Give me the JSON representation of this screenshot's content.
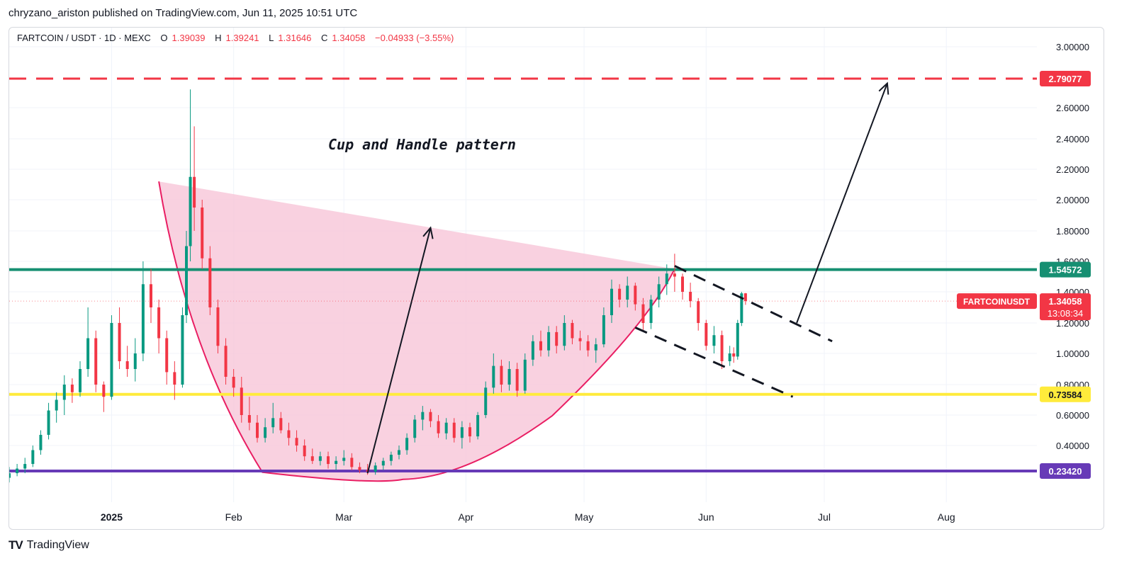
{
  "header": {
    "published_by": "chryzano_ariston published on TradingView.com, Jun 11, 2025 10:51 UTC"
  },
  "legend": {
    "symbol": "FARTCOIN / USDT · 1D · MEXC",
    "o_label": "O",
    "o_value": "1.39039",
    "h_label": "H",
    "h_value": "1.39241",
    "l_label": "L",
    "l_value": "1.31646",
    "c_label": "C",
    "c_value": "1.34058",
    "change": "−0.04933 (−3.55%)"
  },
  "footer": {
    "brand": "TradingView"
  },
  "colors": {
    "up": "#089981",
    "down": "#f23645",
    "target_line": "#f23645",
    "resistance_line": "#168f72",
    "support_line": "#ffeb3b",
    "base_line": "#673ab7",
    "cup_fill": "#f8c5d8",
    "cup_curve": "#e91e63"
  },
  "chart_data": {
    "type": "candlestick",
    "title": "",
    "annotation": "Cup and Handle pattern",
    "x_tick_labels": [
      "2025",
      "Feb",
      "Mar",
      "Apr",
      "May",
      "Jun",
      "Jul",
      "Aug"
    ],
    "x_tick_dates": [
      "2025-01-01",
      "2025-02-01",
      "2025-03-01",
      "2025-04-01",
      "2025-05-01",
      "2025-06-01",
      "2025-07-01",
      "2025-08-01"
    ],
    "x_range": [
      "2024-12-06",
      "2025-08-24"
    ],
    "y_tick_labels": [
      "0.40000",
      "0.60000",
      "0.80000",
      "1.00000",
      "1.20000",
      "1.40000",
      "1.60000",
      "1.80000",
      "2.00000",
      "2.20000",
      "2.40000",
      "2.60000",
      "3.00000"
    ],
    "y_ticks": [
      0.4,
      0.6,
      0.8,
      1.0,
      1.2,
      1.4,
      1.6,
      1.8,
      2.0,
      2.2,
      2.4,
      2.6,
      3.0
    ],
    "y_range": [
      0.15,
      3.1
    ],
    "levels": [
      {
        "label": "2.79077",
        "value": 2.79077,
        "style": "dashed",
        "color": "#f23645"
      },
      {
        "label": "1.54572",
        "value": 1.54572,
        "style": "solid",
        "color": "#168f72"
      },
      {
        "label": "0.73584",
        "value": 0.73584,
        "style": "solid",
        "color": "#ffeb3b"
      },
      {
        "label": "0.23420",
        "value": 0.2342,
        "style": "solid",
        "color": "#673ab7"
      }
    ],
    "price_tag": {
      "name": "FARTCOINUSDT",
      "value": "1.34058",
      "countdown": "13:08:34"
    },
    "cup": {
      "apex_start": {
        "date": "2025-01-13",
        "price": 2.12
      },
      "apex_end": {
        "date": "2025-05-24",
        "price": 1.55
      },
      "bottom": {
        "date": "2025-03-16",
        "price": 0.18
      }
    },
    "handle_channel": {
      "upper": [
        {
          "date": "2025-05-24",
          "price": 1.57
        },
        {
          "date": "2025-07-03",
          "price": 1.08
        }
      ],
      "lower": [
        {
          "date": "2025-05-14",
          "price": 1.17
        },
        {
          "date": "2025-06-23",
          "price": 0.72
        }
      ]
    },
    "arrows": [
      {
        "from": {
          "date": "2025-03-07",
          "price": 0.22
        },
        "to": {
          "date": "2025-03-23",
          "price": 1.82
        }
      },
      {
        "from": {
          "date": "2025-06-24",
          "price": 1.2
        },
        "to": {
          "date": "2025-07-17",
          "price": 2.76
        }
      }
    ],
    "candles": [
      {
        "d": "2024-12-06",
        "o": 0.19,
        "h": 0.26,
        "l": 0.16,
        "c": 0.22
      },
      {
        "d": "2024-12-08",
        "o": 0.22,
        "h": 0.28,
        "l": 0.2,
        "c": 0.25
      },
      {
        "d": "2024-12-10",
        "o": 0.25,
        "h": 0.32,
        "l": 0.22,
        "c": 0.28
      },
      {
        "d": "2024-12-12",
        "o": 0.28,
        "h": 0.4,
        "l": 0.26,
        "c": 0.37
      },
      {
        "d": "2024-12-14",
        "o": 0.37,
        "h": 0.5,
        "l": 0.34,
        "c": 0.47
      },
      {
        "d": "2024-12-16",
        "o": 0.47,
        "h": 0.68,
        "l": 0.44,
        "c": 0.63
      },
      {
        "d": "2024-12-18",
        "o": 0.63,
        "h": 0.75,
        "l": 0.55,
        "c": 0.7
      },
      {
        "d": "2024-12-20",
        "o": 0.7,
        "h": 0.86,
        "l": 0.6,
        "c": 0.8
      },
      {
        "d": "2024-12-22",
        "o": 0.8,
        "h": 0.84,
        "l": 0.68,
        "c": 0.75
      },
      {
        "d": "2024-12-24",
        "o": 0.75,
        "h": 0.95,
        "l": 0.72,
        "c": 0.9
      },
      {
        "d": "2024-12-26",
        "o": 0.9,
        "h": 1.3,
        "l": 0.85,
        "c": 1.1
      },
      {
        "d": "2024-12-28",
        "o": 1.1,
        "h": 1.15,
        "l": 0.75,
        "c": 0.8
      },
      {
        "d": "2024-12-30",
        "o": 0.8,
        "h": 0.82,
        "l": 0.62,
        "c": 0.72
      },
      {
        "d": "2025-01-01",
        "o": 0.72,
        "h": 1.25,
        "l": 0.7,
        "c": 1.2
      },
      {
        "d": "2025-01-03",
        "o": 1.2,
        "h": 1.3,
        "l": 0.9,
        "c": 0.95
      },
      {
        "d": "2025-01-05",
        "o": 0.95,
        "h": 1.05,
        "l": 0.85,
        "c": 0.9
      },
      {
        "d": "2025-01-07",
        "o": 0.9,
        "h": 1.1,
        "l": 0.82,
        "c": 1.0
      },
      {
        "d": "2025-01-09",
        "o": 1.0,
        "h": 1.6,
        "l": 0.95,
        "c": 1.45
      },
      {
        "d": "2025-01-11",
        "o": 1.45,
        "h": 1.55,
        "l": 1.2,
        "c": 1.3
      },
      {
        "d": "2025-01-13",
        "o": 1.3,
        "h": 1.35,
        "l": 1.0,
        "c": 1.1
      },
      {
        "d": "2025-01-15",
        "o": 1.1,
        "h": 1.15,
        "l": 0.8,
        "c": 0.88
      },
      {
        "d": "2025-01-17",
        "o": 0.88,
        "h": 0.95,
        "l": 0.7,
        "c": 0.8
      },
      {
        "d": "2025-01-19",
        "o": 0.8,
        "h": 1.3,
        "l": 0.78,
        "c": 1.25
      },
      {
        "d": "2025-01-20",
        "o": 1.25,
        "h": 1.8,
        "l": 1.2,
        "c": 1.7
      },
      {
        "d": "2025-01-21",
        "o": 1.7,
        "h": 2.72,
        "l": 1.6,
        "c": 2.15
      },
      {
        "d": "2025-01-22",
        "o": 2.15,
        "h": 2.48,
        "l": 1.8,
        "c": 1.95
      },
      {
        "d": "2025-01-24",
        "o": 1.95,
        "h": 2.0,
        "l": 1.55,
        "c": 1.62
      },
      {
        "d": "2025-01-26",
        "o": 1.62,
        "h": 1.7,
        "l": 1.25,
        "c": 1.3
      },
      {
        "d": "2025-01-28",
        "o": 1.3,
        "h": 1.35,
        "l": 1.0,
        "c": 1.05
      },
      {
        "d": "2025-01-30",
        "o": 1.05,
        "h": 1.1,
        "l": 0.8,
        "c": 0.85
      },
      {
        "d": "2025-02-01",
        "o": 0.85,
        "h": 0.9,
        "l": 0.72,
        "c": 0.78
      },
      {
        "d": "2025-02-03",
        "o": 0.78,
        "h": 0.85,
        "l": 0.55,
        "c": 0.6
      },
      {
        "d": "2025-02-05",
        "o": 0.6,
        "h": 0.72,
        "l": 0.5,
        "c": 0.55
      },
      {
        "d": "2025-02-07",
        "o": 0.55,
        "h": 0.6,
        "l": 0.42,
        "c": 0.45
      },
      {
        "d": "2025-02-09",
        "o": 0.45,
        "h": 0.58,
        "l": 0.42,
        "c": 0.52
      },
      {
        "d": "2025-02-11",
        "o": 0.52,
        "h": 0.68,
        "l": 0.48,
        "c": 0.58
      },
      {
        "d": "2025-02-13",
        "o": 0.58,
        "h": 0.62,
        "l": 0.48,
        "c": 0.5
      },
      {
        "d": "2025-02-15",
        "o": 0.5,
        "h": 0.55,
        "l": 0.4,
        "c": 0.45
      },
      {
        "d": "2025-02-17",
        "o": 0.45,
        "h": 0.5,
        "l": 0.36,
        "c": 0.4
      },
      {
        "d": "2025-02-19",
        "o": 0.4,
        "h": 0.44,
        "l": 0.3,
        "c": 0.33
      },
      {
        "d": "2025-02-21",
        "o": 0.33,
        "h": 0.38,
        "l": 0.28,
        "c": 0.3
      },
      {
        "d": "2025-02-23",
        "o": 0.3,
        "h": 0.36,
        "l": 0.27,
        "c": 0.33
      },
      {
        "d": "2025-02-25",
        "o": 0.33,
        "h": 0.36,
        "l": 0.25,
        "c": 0.28
      },
      {
        "d": "2025-02-27",
        "o": 0.28,
        "h": 0.33,
        "l": 0.24,
        "c": 0.3
      },
      {
        "d": "2025-03-01",
        "o": 0.3,
        "h": 0.37,
        "l": 0.27,
        "c": 0.32
      },
      {
        "d": "2025-03-03",
        "o": 0.32,
        "h": 0.35,
        "l": 0.24,
        "c": 0.26
      },
      {
        "d": "2025-03-05",
        "o": 0.26,
        "h": 0.29,
        "l": 0.22,
        "c": 0.24
      },
      {
        "d": "2025-03-07",
        "o": 0.24,
        "h": 0.28,
        "l": 0.21,
        "c": 0.23
      },
      {
        "d": "2025-03-09",
        "o": 0.23,
        "h": 0.29,
        "l": 0.21,
        "c": 0.27
      },
      {
        "d": "2025-03-11",
        "o": 0.27,
        "h": 0.32,
        "l": 0.24,
        "c": 0.3
      },
      {
        "d": "2025-03-13",
        "o": 0.3,
        "h": 0.36,
        "l": 0.27,
        "c": 0.34
      },
      {
        "d": "2025-03-15",
        "o": 0.34,
        "h": 0.4,
        "l": 0.31,
        "c": 0.37
      },
      {
        "d": "2025-03-17",
        "o": 0.37,
        "h": 0.48,
        "l": 0.34,
        "c": 0.45
      },
      {
        "d": "2025-03-19",
        "o": 0.45,
        "h": 0.6,
        "l": 0.42,
        "c": 0.57
      },
      {
        "d": "2025-03-21",
        "o": 0.57,
        "h": 0.66,
        "l": 0.5,
        "c": 0.62
      },
      {
        "d": "2025-03-23",
        "o": 0.62,
        "h": 0.64,
        "l": 0.52,
        "c": 0.56
      },
      {
        "d": "2025-03-25",
        "o": 0.56,
        "h": 0.6,
        "l": 0.45,
        "c": 0.48
      },
      {
        "d": "2025-03-27",
        "o": 0.48,
        "h": 0.58,
        "l": 0.44,
        "c": 0.55
      },
      {
        "d": "2025-03-29",
        "o": 0.55,
        "h": 0.58,
        "l": 0.42,
        "c": 0.45
      },
      {
        "d": "2025-03-31",
        "o": 0.45,
        "h": 0.56,
        "l": 0.38,
        "c": 0.52
      },
      {
        "d": "2025-04-02",
        "o": 0.52,
        "h": 0.55,
        "l": 0.42,
        "c": 0.46
      },
      {
        "d": "2025-04-04",
        "o": 0.46,
        "h": 0.62,
        "l": 0.44,
        "c": 0.6
      },
      {
        "d": "2025-04-06",
        "o": 0.6,
        "h": 0.82,
        "l": 0.58,
        "c": 0.78
      },
      {
        "d": "2025-04-08",
        "o": 0.78,
        "h": 1.0,
        "l": 0.74,
        "c": 0.92
      },
      {
        "d": "2025-04-10",
        "o": 0.92,
        "h": 0.96,
        "l": 0.75,
        "c": 0.8
      },
      {
        "d": "2025-04-12",
        "o": 0.8,
        "h": 0.95,
        "l": 0.76,
        "c": 0.9
      },
      {
        "d": "2025-04-14",
        "o": 0.9,
        "h": 0.94,
        "l": 0.72,
        "c": 0.76
      },
      {
        "d": "2025-04-16",
        "o": 0.76,
        "h": 1.0,
        "l": 0.74,
        "c": 0.96
      },
      {
        "d": "2025-04-18",
        "o": 0.96,
        "h": 1.12,
        "l": 0.92,
        "c": 1.08
      },
      {
        "d": "2025-04-20",
        "o": 1.08,
        "h": 1.15,
        "l": 0.98,
        "c": 1.02
      },
      {
        "d": "2025-04-22",
        "o": 1.02,
        "h": 1.18,
        "l": 0.98,
        "c": 1.14
      },
      {
        "d": "2025-04-24",
        "o": 1.14,
        "h": 1.18,
        "l": 1.0,
        "c": 1.05
      },
      {
        "d": "2025-04-26",
        "o": 1.05,
        "h": 1.25,
        "l": 1.02,
        "c": 1.2
      },
      {
        "d": "2025-04-28",
        "o": 1.2,
        "h": 1.22,
        "l": 1.06,
        "c": 1.1
      },
      {
        "d": "2025-04-30",
        "o": 1.1,
        "h": 1.15,
        "l": 1.02,
        "c": 1.08
      },
      {
        "d": "2025-05-02",
        "o": 1.08,
        "h": 1.12,
        "l": 0.98,
        "c": 1.02
      },
      {
        "d": "2025-05-04",
        "o": 1.02,
        "h": 1.1,
        "l": 0.94,
        "c": 1.06
      },
      {
        "d": "2025-05-06",
        "o": 1.06,
        "h": 1.3,
        "l": 1.04,
        "c": 1.25
      },
      {
        "d": "2025-05-08",
        "o": 1.25,
        "h": 1.48,
        "l": 1.2,
        "c": 1.42
      },
      {
        "d": "2025-05-10",
        "o": 1.42,
        "h": 1.45,
        "l": 1.3,
        "c": 1.35
      },
      {
        "d": "2025-05-12",
        "o": 1.35,
        "h": 1.5,
        "l": 1.3,
        "c": 1.44
      },
      {
        "d": "2025-05-14",
        "o": 1.44,
        "h": 1.46,
        "l": 1.28,
        "c": 1.32
      },
      {
        "d": "2025-05-16",
        "o": 1.32,
        "h": 1.36,
        "l": 1.15,
        "c": 1.2
      },
      {
        "d": "2025-05-18",
        "o": 1.2,
        "h": 1.38,
        "l": 1.16,
        "c": 1.35
      },
      {
        "d": "2025-05-20",
        "o": 1.35,
        "h": 1.5,
        "l": 1.3,
        "c": 1.45
      },
      {
        "d": "2025-05-22",
        "o": 1.45,
        "h": 1.58,
        "l": 1.38,
        "c": 1.52
      },
      {
        "d": "2025-05-24",
        "o": 1.52,
        "h": 1.65,
        "l": 1.4,
        "c": 1.5
      },
      {
        "d": "2025-05-26",
        "o": 1.5,
        "h": 1.52,
        "l": 1.35,
        "c": 1.4
      },
      {
        "d": "2025-05-28",
        "o": 1.4,
        "h": 1.46,
        "l": 1.3,
        "c": 1.34
      },
      {
        "d": "2025-05-30",
        "o": 1.34,
        "h": 1.36,
        "l": 1.15,
        "c": 1.2
      },
      {
        "d": "2025-06-01",
        "o": 1.2,
        "h": 1.22,
        "l": 1.02,
        "c": 1.05
      },
      {
        "d": "2025-06-03",
        "o": 1.05,
        "h": 1.18,
        "l": 1.0,
        "c": 1.12
      },
      {
        "d": "2025-06-05",
        "o": 1.12,
        "h": 1.15,
        "l": 0.9,
        "c": 0.95
      },
      {
        "d": "2025-06-07",
        "o": 0.95,
        "h": 1.05,
        "l": 0.92,
        "c": 1.0
      },
      {
        "d": "2025-06-08",
        "o": 1.0,
        "h": 1.04,
        "l": 0.94,
        "c": 0.98
      },
      {
        "d": "2025-06-09",
        "o": 0.98,
        "h": 1.22,
        "l": 0.96,
        "c": 1.2
      },
      {
        "d": "2025-06-10",
        "o": 1.2,
        "h": 1.4,
        "l": 1.18,
        "c": 1.39
      },
      {
        "d": "2025-06-11",
        "o": 1.39039,
        "h": 1.39241,
        "l": 1.31646,
        "c": 1.34058
      }
    ]
  }
}
